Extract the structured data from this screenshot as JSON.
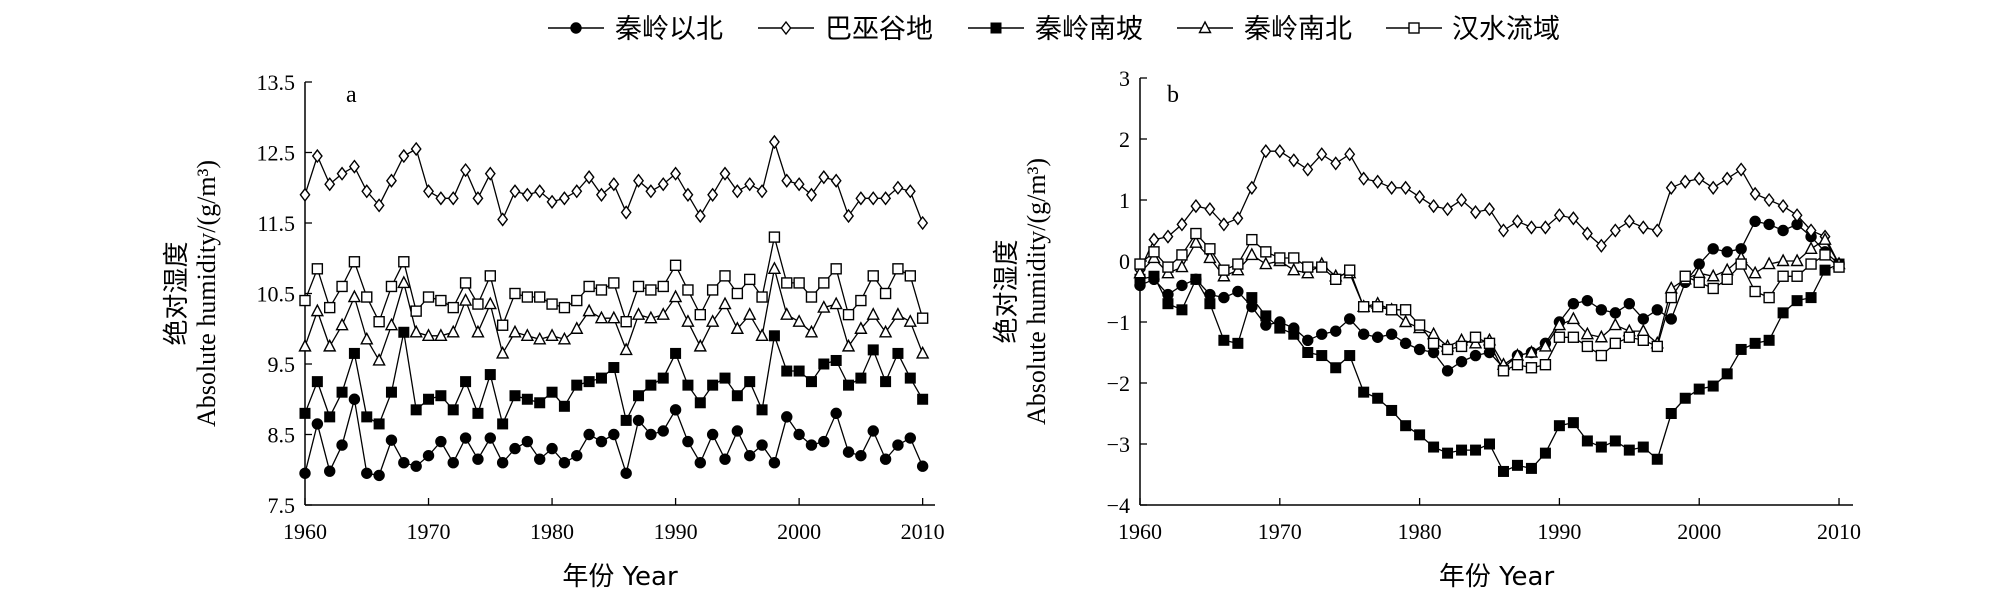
{
  "legend": {
    "items": [
      {
        "label": "秦岭以北",
        "marker": "circle-filled"
      },
      {
        "label": "巴巫谷地",
        "marker": "diamond-open"
      },
      {
        "label": "秦岭南坡",
        "marker": "square-filled"
      },
      {
        "label": "秦岭南北",
        "marker": "triangle-open"
      },
      {
        "label": "汉水流域",
        "marker": "square-open"
      }
    ]
  },
  "chart_data": [
    {
      "type": "line",
      "panel_label": "a",
      "xlabel": "年份 Year",
      "ylabel_line1": "绝对湿度",
      "ylabel_line2": "Absolute humidity/(g/m³)",
      "xlim": [
        1960,
        2011
      ],
      "ylim": [
        7.5,
        13.5
      ],
      "xticks": [
        1960,
        1970,
        1980,
        1990,
        2000,
        2010
      ],
      "yticks": [
        7.5,
        8.5,
        9.5,
        10.5,
        11.5,
        12.5,
        13.5
      ],
      "ytick_labels": [
        "7.5",
        "8.5",
        "9.5",
        "10.5",
        "11.5",
        "12.5",
        "13.5"
      ],
      "x": [
        1960,
        1961,
        1962,
        1963,
        1964,
        1965,
        1966,
        1967,
        1968,
        1969,
        1970,
        1971,
        1972,
        1973,
        1974,
        1975,
        1976,
        1977,
        1978,
        1979,
        1980,
        1981,
        1982,
        1983,
        1984,
        1985,
        1986,
        1987,
        1988,
        1989,
        1990,
        1991,
        1992,
        1993,
        1994,
        1995,
        1996,
        1997,
        1998,
        1999,
        2000,
        2001,
        2002,
        2003,
        2004,
        2005,
        2006,
        2007,
        2008,
        2009,
        2010
      ],
      "series": [
        {
          "name": "秦岭以北",
          "marker": "circle-filled",
          "values": [
            7.95,
            8.65,
            7.98,
            8.35,
            9.0,
            7.95,
            7.92,
            8.42,
            8.1,
            8.05,
            8.2,
            8.4,
            8.1,
            8.45,
            8.15,
            8.45,
            8.1,
            8.3,
            8.4,
            8.15,
            8.3,
            8.1,
            8.2,
            8.5,
            8.4,
            8.5,
            7.95,
            8.7,
            8.5,
            8.55,
            8.85,
            8.4,
            8.1,
            8.5,
            8.15,
            8.55,
            8.2,
            8.35,
            8.1,
            8.75,
            8.5,
            8.35,
            8.4,
            8.8,
            8.25,
            8.2,
            8.55,
            8.15,
            8.35,
            8.45,
            8.05
          ]
        },
        {
          "name": "巴巫谷地",
          "marker": "diamond-open",
          "values": [
            11.9,
            12.45,
            12.05,
            12.2,
            12.3,
            11.95,
            11.75,
            12.1,
            12.45,
            12.55,
            11.95,
            11.85,
            11.85,
            12.25,
            11.85,
            12.2,
            11.55,
            11.95,
            11.9,
            11.95,
            11.8,
            11.85,
            11.95,
            12.15,
            11.9,
            12.05,
            11.65,
            12.1,
            11.95,
            12.05,
            12.2,
            11.9,
            11.6,
            11.9,
            12.2,
            11.95,
            12.05,
            11.95,
            12.65,
            12.1,
            12.05,
            11.9,
            12.15,
            12.1,
            11.6,
            11.85,
            11.85,
            11.85,
            12.0,
            11.95,
            11.5
          ]
        },
        {
          "name": "秦岭南坡",
          "marker": "square-filled",
          "values": [
            8.8,
            9.25,
            8.75,
            9.1,
            9.65,
            8.75,
            8.65,
            9.1,
            9.95,
            8.85,
            9.0,
            9.05,
            8.85,
            9.25,
            8.8,
            9.35,
            8.65,
            9.05,
            9.0,
            8.95,
            9.1,
            8.9,
            9.2,
            9.25,
            9.3,
            9.45,
            8.7,
            9.05,
            9.2,
            9.3,
            9.65,
            9.2,
            8.95,
            9.2,
            9.3,
            9.05,
            9.25,
            8.85,
            9.9,
            9.4,
            9.4,
            9.25,
            9.5,
            9.55,
            9.2,
            9.3,
            9.7,
            9.25,
            9.65,
            9.3,
            9.0
          ]
        },
        {
          "name": "秦岭南北",
          "marker": "triangle-open",
          "values": [
            9.75,
            10.25,
            9.75,
            10.05,
            10.45,
            9.85,
            9.55,
            10.05,
            10.65,
            9.95,
            9.9,
            9.9,
            9.95,
            10.4,
            9.95,
            10.35,
            9.65,
            9.95,
            9.9,
            9.85,
            9.9,
            9.85,
            10.0,
            10.25,
            10.15,
            10.15,
            9.7,
            10.2,
            10.15,
            10.2,
            10.45,
            10.1,
            9.75,
            10.1,
            10.35,
            10.0,
            10.2,
            9.9,
            10.85,
            10.2,
            10.1,
            9.95,
            10.3,
            10.35,
            9.75,
            10.0,
            10.2,
            9.95,
            10.2,
            10.1,
            9.65
          ]
        },
        {
          "name": "汉水流域",
          "marker": "square-open",
          "values": [
            10.4,
            10.85,
            10.3,
            10.6,
            10.95,
            10.45,
            10.1,
            10.6,
            10.95,
            10.25,
            10.45,
            10.4,
            10.3,
            10.65,
            10.35,
            10.75,
            10.05,
            10.5,
            10.45,
            10.45,
            10.35,
            10.3,
            10.4,
            10.6,
            10.55,
            10.65,
            10.1,
            10.6,
            10.55,
            10.6,
            10.9,
            10.55,
            10.2,
            10.55,
            10.75,
            10.5,
            10.7,
            10.45,
            11.3,
            10.65,
            10.65,
            10.45,
            10.65,
            10.85,
            10.2,
            10.4,
            10.75,
            10.5,
            10.85,
            10.75,
            10.15
          ]
        }
      ]
    },
    {
      "type": "line",
      "panel_label": "b",
      "xlabel": "年份 Year",
      "ylabel_line1": "绝对湿度",
      "ylabel_line2": "Absolute humidity/(g/m³)",
      "xlim": [
        1960,
        2011
      ],
      "ylim": [
        -4,
        3
      ],
      "xticks": [
        1960,
        1970,
        1980,
        1990,
        2000,
        2010
      ],
      "yticks": [
        -4,
        -3,
        -2,
        -1,
        0,
        1,
        2,
        3
      ],
      "ytick_labels": [
        "−4",
        "−3",
        "−2",
        "−1",
        "0",
        "1",
        "2",
        "3"
      ],
      "x": [
        1960,
        1961,
        1962,
        1963,
        1964,
        1965,
        1966,
        1967,
        1968,
        1969,
        1970,
        1971,
        1972,
        1973,
        1974,
        1975,
        1976,
        1977,
        1978,
        1979,
        1980,
        1981,
        1982,
        1983,
        1984,
        1985,
        1986,
        1987,
        1988,
        1989,
        1990,
        1991,
        1992,
        1993,
        1994,
        1995,
        1996,
        1997,
        1998,
        1999,
        2000,
        2001,
        2002,
        2003,
        2004,
        2005,
        2006,
        2007,
        2008,
        2009,
        2010
      ],
      "series": [
        {
          "name": "秦岭以北",
          "marker": "circle-filled",
          "values": [
            -0.4,
            -0.3,
            -0.55,
            -0.4,
            -0.3,
            -0.55,
            -0.6,
            -0.5,
            -0.75,
            -1.05,
            -1.0,
            -1.1,
            -1.3,
            -1.2,
            -1.15,
            -0.95,
            -1.2,
            -1.25,
            -1.2,
            -1.35,
            -1.45,
            -1.5,
            -1.8,
            -1.65,
            -1.55,
            -1.5,
            -1.75,
            -1.55,
            -1.5,
            -1.35,
            -1.0,
            -0.7,
            -0.65,
            -0.8,
            -0.85,
            -0.7,
            -0.95,
            -0.8,
            -0.95,
            -0.35,
            -0.05,
            0.2,
            0.15,
            0.2,
            0.65,
            0.6,
            0.5,
            0.6,
            0.4,
            0.15,
            -0.05
          ]
        },
        {
          "name": "巴巫谷地",
          "marker": "diamond-open",
          "values": [
            -0.15,
            0.35,
            0.4,
            0.6,
            0.9,
            0.85,
            0.6,
            0.7,
            1.2,
            1.8,
            1.8,
            1.65,
            1.5,
            1.75,
            1.6,
            1.75,
            1.35,
            1.3,
            1.2,
            1.2,
            1.05,
            0.9,
            0.85,
            1.0,
            0.8,
            0.85,
            0.5,
            0.65,
            0.55,
            0.55,
            0.75,
            0.7,
            0.45,
            0.25,
            0.5,
            0.65,
            0.55,
            0.5,
            1.2,
            1.3,
            1.35,
            1.2,
            1.35,
            1.5,
            1.1,
            1.0,
            0.9,
            0.75,
            0.5,
            0.4,
            -0.05
          ]
        },
        {
          "name": "秦岭南坡",
          "marker": "square-filled",
          "values": [
            -0.3,
            -0.25,
            -0.7,
            -0.8,
            -0.3,
            -0.7,
            -1.3,
            -1.35,
            -0.6,
            -0.9,
            -1.1,
            -1.2,
            -1.5,
            -1.55,
            -1.75,
            -1.55,
            -2.15,
            -2.25,
            -2.45,
            -2.7,
            -2.85,
            -3.05,
            -3.15,
            -3.1,
            -3.1,
            -3.0,
            -3.45,
            -3.35,
            -3.4,
            -3.15,
            -2.7,
            -2.65,
            -2.95,
            -3.05,
            -2.95,
            -3.1,
            -3.05,
            -3.25,
            -2.5,
            -2.25,
            -2.1,
            -2.05,
            -1.85,
            -1.45,
            -1.35,
            -1.3,
            -0.85,
            -0.65,
            -0.6,
            -0.15,
            -0.05
          ]
        },
        {
          "name": "秦岭南北",
          "marker": "triangle-open",
          "values": [
            -0.2,
            0.05,
            -0.2,
            -0.1,
            0.3,
            0.05,
            -0.25,
            -0.15,
            0.1,
            -0.05,
            0.0,
            -0.15,
            -0.2,
            -0.05,
            -0.25,
            -0.2,
            -0.75,
            -0.7,
            -0.8,
            -1.0,
            -1.1,
            -1.2,
            -1.4,
            -1.3,
            -1.35,
            -1.3,
            -1.7,
            -1.55,
            -1.5,
            -1.4,
            -1.05,
            -0.95,
            -1.2,
            -1.25,
            -1.05,
            -1.15,
            -1.15,
            -1.35,
            -0.45,
            -0.3,
            -0.2,
            -0.25,
            -0.15,
            0.05,
            -0.2,
            -0.05,
            0.0,
            0.0,
            0.2,
            0.35,
            -0.05
          ]
        },
        {
          "name": "汉水流域",
          "marker": "square-open",
          "values": [
            -0.05,
            0.15,
            -0.1,
            0.1,
            0.45,
            0.2,
            -0.15,
            -0.05,
            0.35,
            0.15,
            0.05,
            0.05,
            -0.1,
            -0.1,
            -0.3,
            -0.15,
            -0.75,
            -0.75,
            -0.8,
            -0.8,
            -1.05,
            -1.35,
            -1.45,
            -1.4,
            -1.25,
            -1.35,
            -1.8,
            -1.7,
            -1.75,
            -1.7,
            -1.25,
            -1.25,
            -1.4,
            -1.55,
            -1.35,
            -1.25,
            -1.3,
            -1.4,
            -0.6,
            -0.25,
            -0.35,
            -0.45,
            -0.3,
            -0.05,
            -0.5,
            -0.6,
            -0.25,
            -0.25,
            -0.05,
            0.1,
            -0.1
          ]
        }
      ]
    }
  ]
}
